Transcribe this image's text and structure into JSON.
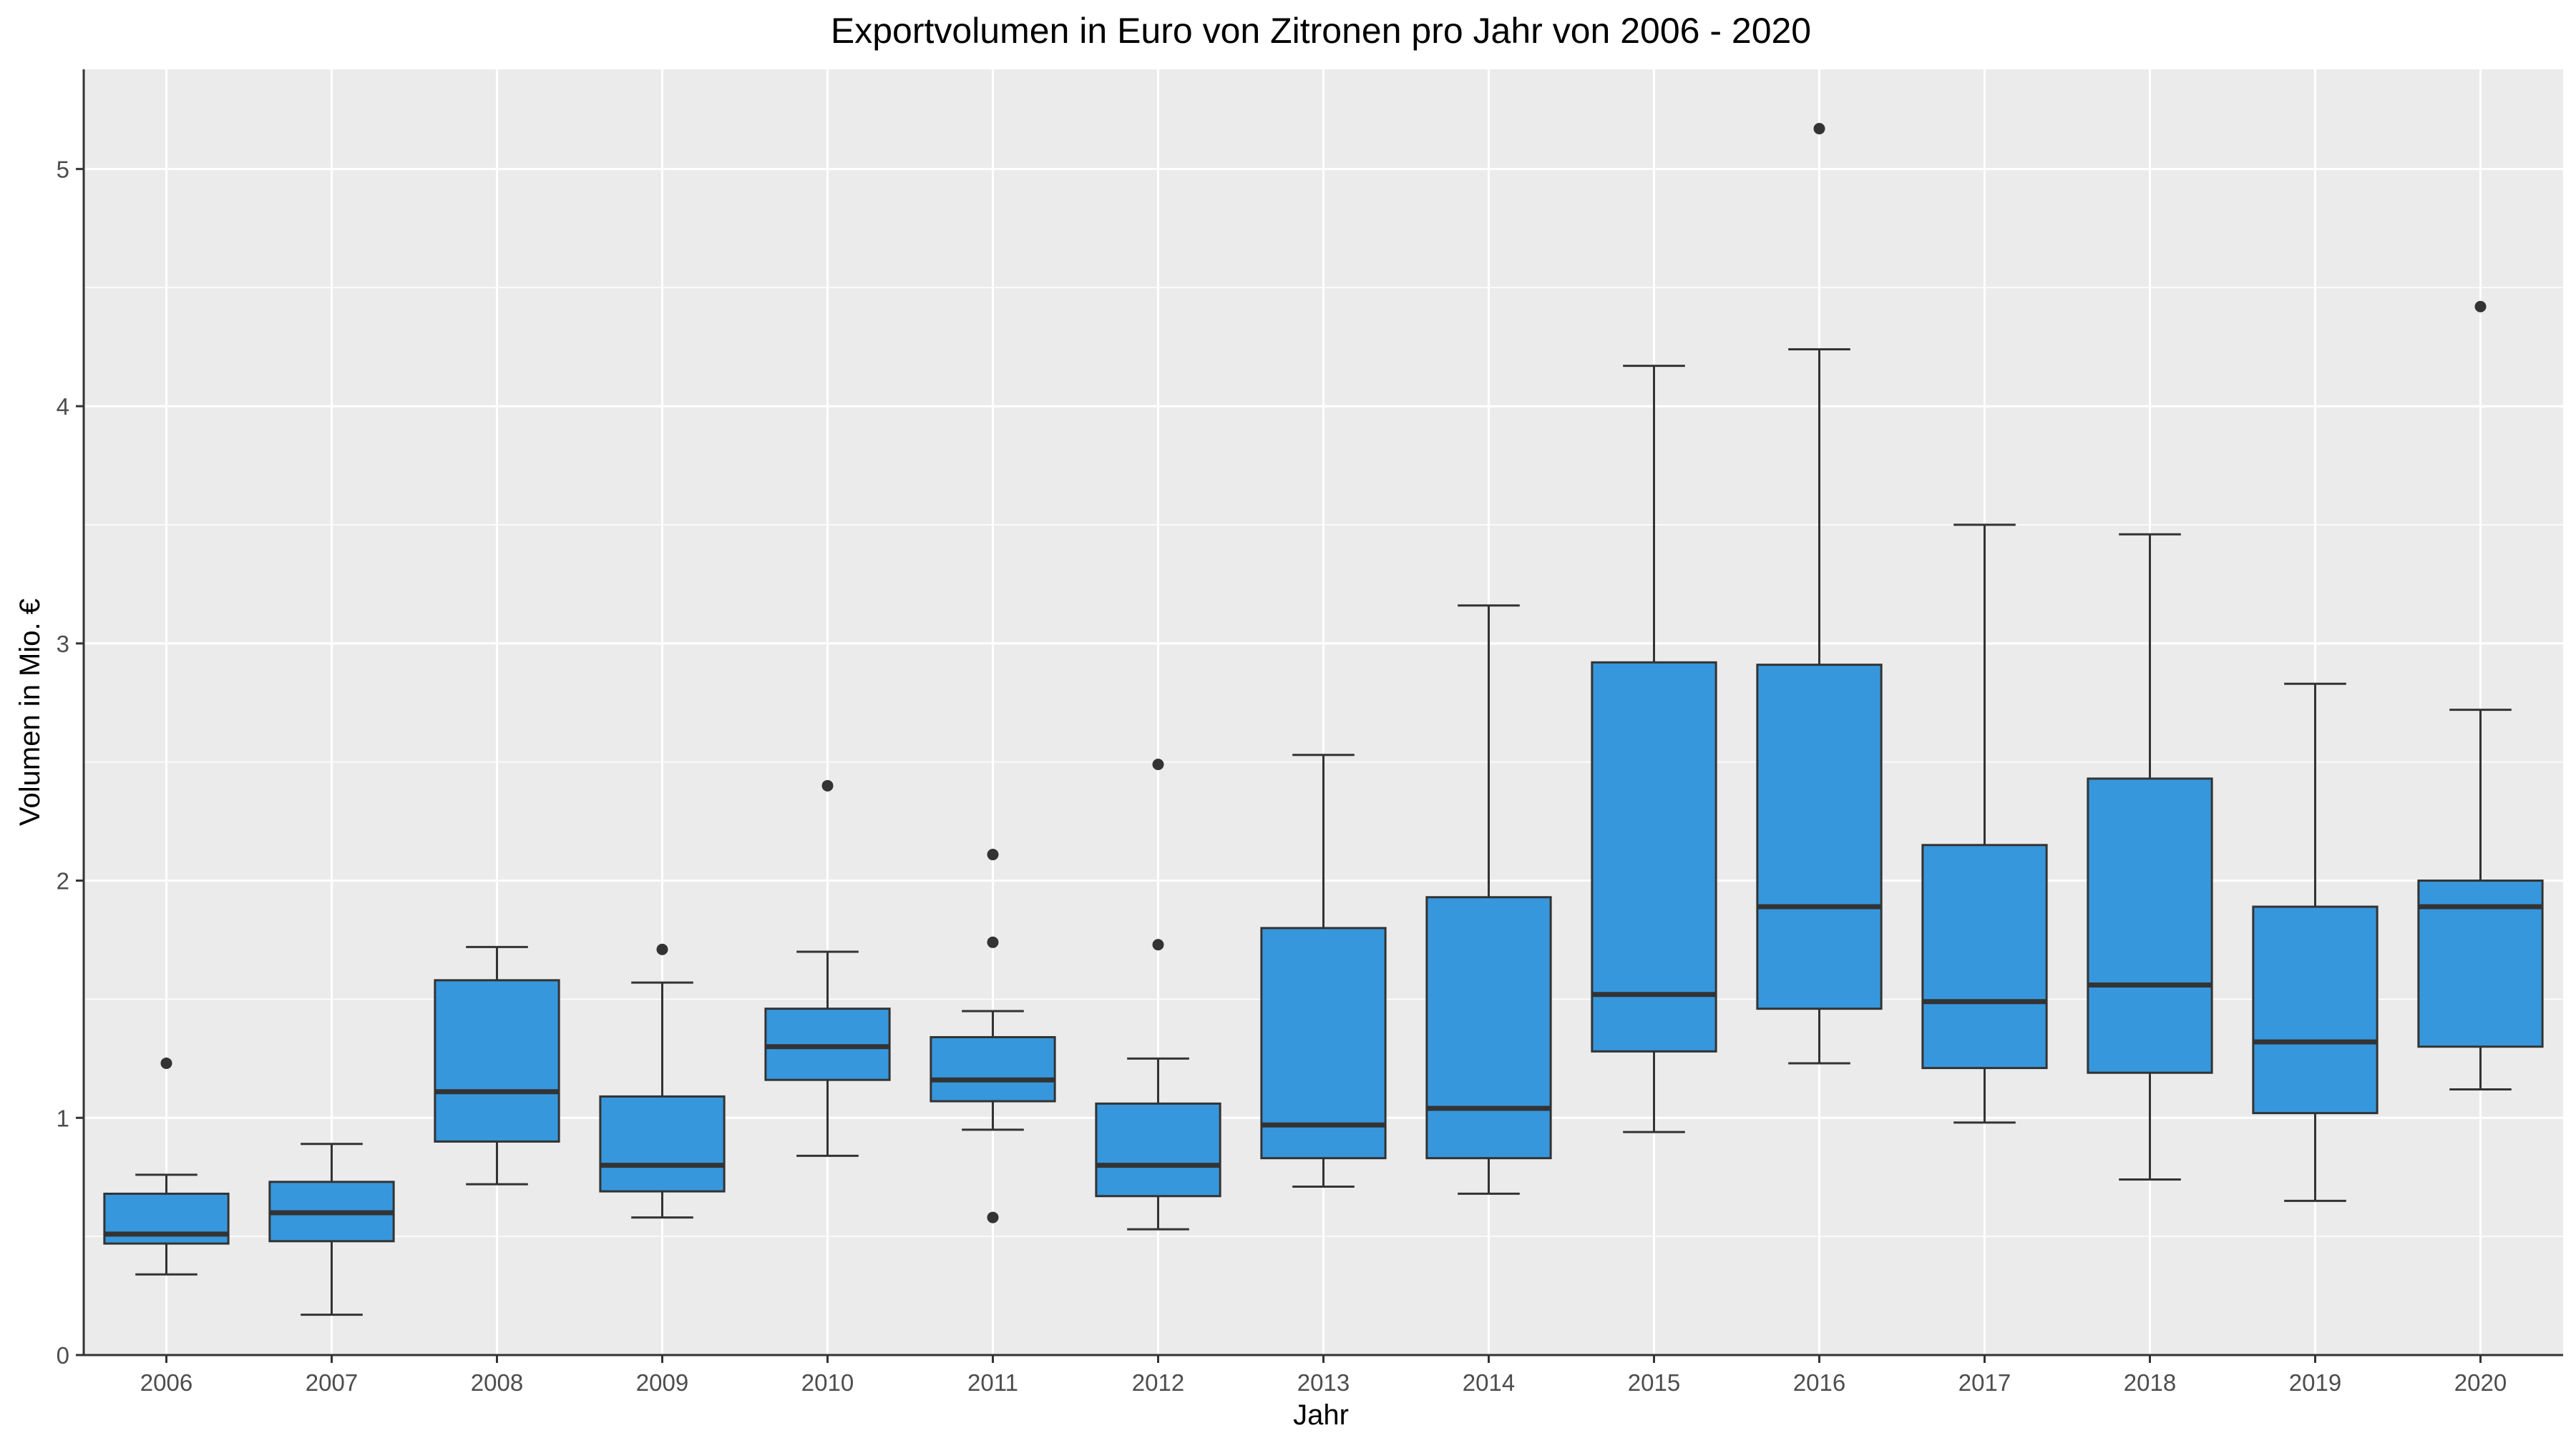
{
  "chart_data": {
    "type": "boxplot",
    "title": "Exportvolumen in Euro von Zitronen pro Jahr von 2006 - 2020",
    "xlabel": "Jahr",
    "ylabel": "Volumen in Mio. €",
    "ylim": [
      0,
      5.42
    ],
    "yticks": [
      0,
      1,
      2,
      3,
      4,
      5
    ],
    "grid": true,
    "colors": {
      "panel": "#ebebeb",
      "grid": "#ffffff",
      "box_fill": "#3797dc",
      "box_line": "#333333",
      "outlier": "#333333"
    },
    "categories": [
      "2006",
      "2007",
      "2008",
      "2009",
      "2010",
      "2011",
      "2012",
      "2013",
      "2014",
      "2015",
      "2016",
      "2017",
      "2018",
      "2019",
      "2020"
    ],
    "boxes": [
      {
        "year": "2006",
        "lower": 0.34,
        "q1": 0.47,
        "median": 0.51,
        "q3": 0.68,
        "upper": 0.76,
        "outliers": [
          1.23
        ]
      },
      {
        "year": "2007",
        "lower": 0.17,
        "q1": 0.48,
        "median": 0.6,
        "q3": 0.73,
        "upper": 0.89,
        "outliers": []
      },
      {
        "year": "2008",
        "lower": 0.72,
        "q1": 0.9,
        "median": 1.11,
        "q3": 1.58,
        "upper": 1.72,
        "outliers": []
      },
      {
        "year": "2009",
        "lower": 0.58,
        "q1": 0.69,
        "median": 0.8,
        "q3": 1.09,
        "upper": 1.57,
        "outliers": [
          1.71
        ]
      },
      {
        "year": "2010",
        "lower": 0.84,
        "q1": 1.16,
        "median": 1.3,
        "q3": 1.46,
        "upper": 1.7,
        "outliers": [
          2.4
        ]
      },
      {
        "year": "2011",
        "lower": 0.95,
        "q1": 1.07,
        "median": 1.16,
        "q3": 1.34,
        "upper": 1.45,
        "outliers": [
          0.58,
          1.74,
          2.11
        ]
      },
      {
        "year": "2012",
        "lower": 0.53,
        "q1": 0.67,
        "median": 0.8,
        "q3": 1.06,
        "upper": 1.25,
        "outliers": [
          1.73,
          2.49
        ]
      },
      {
        "year": "2013",
        "lower": 0.71,
        "q1": 0.83,
        "median": 0.97,
        "q3": 1.8,
        "upper": 2.53,
        "outliers": []
      },
      {
        "year": "2014",
        "lower": 0.68,
        "q1": 0.83,
        "median": 1.04,
        "q3": 1.93,
        "upper": 3.16,
        "outliers": []
      },
      {
        "year": "2015",
        "lower": 0.94,
        "q1": 1.28,
        "median": 1.52,
        "q3": 2.92,
        "upper": 4.17,
        "outliers": []
      },
      {
        "year": "2016",
        "lower": 1.23,
        "q1": 1.46,
        "median": 1.89,
        "q3": 2.91,
        "upper": 4.24,
        "outliers": [
          5.17
        ]
      },
      {
        "year": "2017",
        "lower": 0.98,
        "q1": 1.21,
        "median": 1.49,
        "q3": 2.15,
        "upper": 3.5,
        "outliers": []
      },
      {
        "year": "2018",
        "lower": 0.74,
        "q1": 1.19,
        "median": 1.56,
        "q3": 2.43,
        "upper": 3.46,
        "outliers": []
      },
      {
        "year": "2019",
        "lower": 0.65,
        "q1": 1.02,
        "median": 1.32,
        "q3": 1.89,
        "upper": 2.83,
        "outliers": []
      },
      {
        "year": "2020",
        "lower": 1.12,
        "q1": 1.3,
        "median": 1.89,
        "q3": 2.0,
        "upper": 2.72,
        "outliers": [
          4.42
        ]
      }
    ]
  }
}
